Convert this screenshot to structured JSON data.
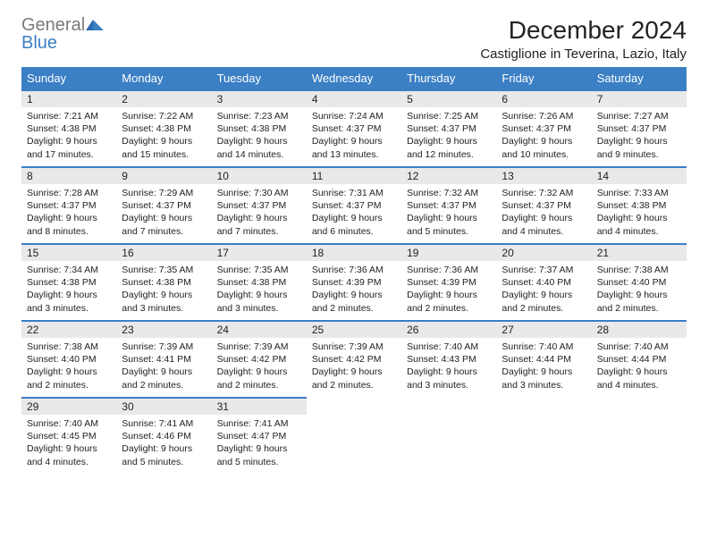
{
  "brand": {
    "line1": "General",
    "line2": "Blue"
  },
  "title": "December 2024",
  "location": "Castiglione in Teverina, Lazio, Italy",
  "colors": {
    "brand_gray": "#7a7a7a",
    "brand_blue": "#3b7fc4",
    "header_bg": "#3b7fc4",
    "header_text": "#ffffff",
    "daynum_bg": "#e9e9e9",
    "row_divider": "#3b7fc4",
    "text": "#222222",
    "page_bg": "#ffffff"
  },
  "weekdays": [
    "Sunday",
    "Monday",
    "Tuesday",
    "Wednesday",
    "Thursday",
    "Friday",
    "Saturday"
  ],
  "weeks": [
    [
      {
        "num": "1",
        "sunrise": "Sunrise: 7:21 AM",
        "sunset": "Sunset: 4:38 PM",
        "daylight": "Daylight: 9 hours and 17 minutes."
      },
      {
        "num": "2",
        "sunrise": "Sunrise: 7:22 AM",
        "sunset": "Sunset: 4:38 PM",
        "daylight": "Daylight: 9 hours and 15 minutes."
      },
      {
        "num": "3",
        "sunrise": "Sunrise: 7:23 AM",
        "sunset": "Sunset: 4:38 PM",
        "daylight": "Daylight: 9 hours and 14 minutes."
      },
      {
        "num": "4",
        "sunrise": "Sunrise: 7:24 AM",
        "sunset": "Sunset: 4:37 PM",
        "daylight": "Daylight: 9 hours and 13 minutes."
      },
      {
        "num": "5",
        "sunrise": "Sunrise: 7:25 AM",
        "sunset": "Sunset: 4:37 PM",
        "daylight": "Daylight: 9 hours and 12 minutes."
      },
      {
        "num": "6",
        "sunrise": "Sunrise: 7:26 AM",
        "sunset": "Sunset: 4:37 PM",
        "daylight": "Daylight: 9 hours and 10 minutes."
      },
      {
        "num": "7",
        "sunrise": "Sunrise: 7:27 AM",
        "sunset": "Sunset: 4:37 PM",
        "daylight": "Daylight: 9 hours and 9 minutes."
      }
    ],
    [
      {
        "num": "8",
        "sunrise": "Sunrise: 7:28 AM",
        "sunset": "Sunset: 4:37 PM",
        "daylight": "Daylight: 9 hours and 8 minutes."
      },
      {
        "num": "9",
        "sunrise": "Sunrise: 7:29 AM",
        "sunset": "Sunset: 4:37 PM",
        "daylight": "Daylight: 9 hours and 7 minutes."
      },
      {
        "num": "10",
        "sunrise": "Sunrise: 7:30 AM",
        "sunset": "Sunset: 4:37 PM",
        "daylight": "Daylight: 9 hours and 7 minutes."
      },
      {
        "num": "11",
        "sunrise": "Sunrise: 7:31 AM",
        "sunset": "Sunset: 4:37 PM",
        "daylight": "Daylight: 9 hours and 6 minutes."
      },
      {
        "num": "12",
        "sunrise": "Sunrise: 7:32 AM",
        "sunset": "Sunset: 4:37 PM",
        "daylight": "Daylight: 9 hours and 5 minutes."
      },
      {
        "num": "13",
        "sunrise": "Sunrise: 7:32 AM",
        "sunset": "Sunset: 4:37 PM",
        "daylight": "Daylight: 9 hours and 4 minutes."
      },
      {
        "num": "14",
        "sunrise": "Sunrise: 7:33 AM",
        "sunset": "Sunset: 4:38 PM",
        "daylight": "Daylight: 9 hours and 4 minutes."
      }
    ],
    [
      {
        "num": "15",
        "sunrise": "Sunrise: 7:34 AM",
        "sunset": "Sunset: 4:38 PM",
        "daylight": "Daylight: 9 hours and 3 minutes."
      },
      {
        "num": "16",
        "sunrise": "Sunrise: 7:35 AM",
        "sunset": "Sunset: 4:38 PM",
        "daylight": "Daylight: 9 hours and 3 minutes."
      },
      {
        "num": "17",
        "sunrise": "Sunrise: 7:35 AM",
        "sunset": "Sunset: 4:38 PM",
        "daylight": "Daylight: 9 hours and 3 minutes."
      },
      {
        "num": "18",
        "sunrise": "Sunrise: 7:36 AM",
        "sunset": "Sunset: 4:39 PM",
        "daylight": "Daylight: 9 hours and 2 minutes."
      },
      {
        "num": "19",
        "sunrise": "Sunrise: 7:36 AM",
        "sunset": "Sunset: 4:39 PM",
        "daylight": "Daylight: 9 hours and 2 minutes."
      },
      {
        "num": "20",
        "sunrise": "Sunrise: 7:37 AM",
        "sunset": "Sunset: 4:40 PM",
        "daylight": "Daylight: 9 hours and 2 minutes."
      },
      {
        "num": "21",
        "sunrise": "Sunrise: 7:38 AM",
        "sunset": "Sunset: 4:40 PM",
        "daylight": "Daylight: 9 hours and 2 minutes."
      }
    ],
    [
      {
        "num": "22",
        "sunrise": "Sunrise: 7:38 AM",
        "sunset": "Sunset: 4:40 PM",
        "daylight": "Daylight: 9 hours and 2 minutes."
      },
      {
        "num": "23",
        "sunrise": "Sunrise: 7:39 AM",
        "sunset": "Sunset: 4:41 PM",
        "daylight": "Daylight: 9 hours and 2 minutes."
      },
      {
        "num": "24",
        "sunrise": "Sunrise: 7:39 AM",
        "sunset": "Sunset: 4:42 PM",
        "daylight": "Daylight: 9 hours and 2 minutes."
      },
      {
        "num": "25",
        "sunrise": "Sunrise: 7:39 AM",
        "sunset": "Sunset: 4:42 PM",
        "daylight": "Daylight: 9 hours and 2 minutes."
      },
      {
        "num": "26",
        "sunrise": "Sunrise: 7:40 AM",
        "sunset": "Sunset: 4:43 PM",
        "daylight": "Daylight: 9 hours and 3 minutes."
      },
      {
        "num": "27",
        "sunrise": "Sunrise: 7:40 AM",
        "sunset": "Sunset: 4:44 PM",
        "daylight": "Daylight: 9 hours and 3 minutes."
      },
      {
        "num": "28",
        "sunrise": "Sunrise: 7:40 AM",
        "sunset": "Sunset: 4:44 PM",
        "daylight": "Daylight: 9 hours and 4 minutes."
      }
    ],
    [
      {
        "num": "29",
        "sunrise": "Sunrise: 7:40 AM",
        "sunset": "Sunset: 4:45 PM",
        "daylight": "Daylight: 9 hours and 4 minutes."
      },
      {
        "num": "30",
        "sunrise": "Sunrise: 7:41 AM",
        "sunset": "Sunset: 4:46 PM",
        "daylight": "Daylight: 9 hours and 5 minutes."
      },
      {
        "num": "31",
        "sunrise": "Sunrise: 7:41 AM",
        "sunset": "Sunset: 4:47 PM",
        "daylight": "Daylight: 9 hours and 5 minutes."
      },
      null,
      null,
      null,
      null
    ]
  ]
}
